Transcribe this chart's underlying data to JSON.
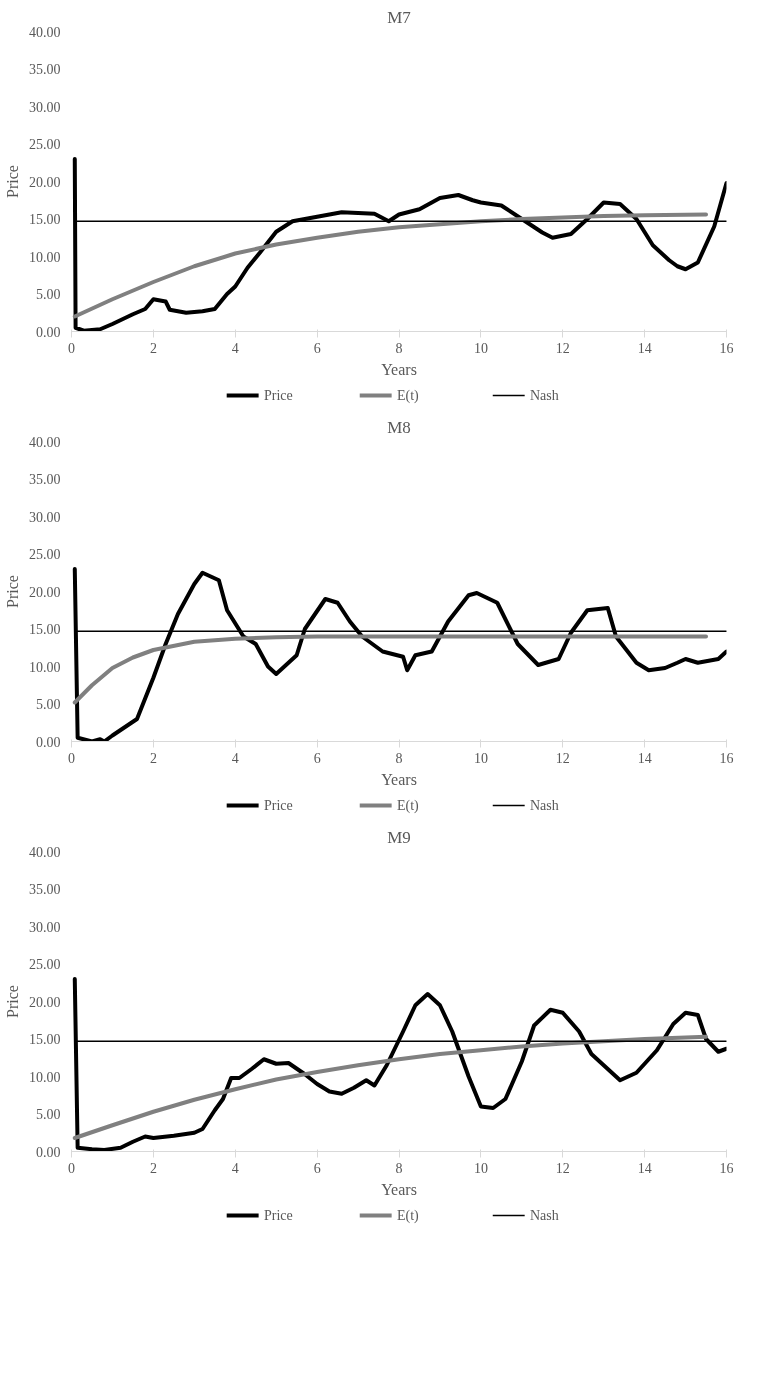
{
  "chart_data": [
    {
      "type": "line",
      "title": "M7",
      "xlabel": "Years",
      "ylabel": "Price",
      "xlim": [
        0,
        16
      ],
      "xticks": [
        0,
        2,
        4,
        6,
        8,
        10,
        12,
        14,
        16
      ],
      "ylim": [
        0,
        40
      ],
      "yticks": [
        {
          "value": 0,
          "label": "0.00"
        },
        {
          "value": 5,
          "label": "5.00"
        },
        {
          "value": 10,
          "label": "10.00"
        },
        {
          "value": 15,
          "label": "15.00"
        },
        {
          "value": 20,
          "label": "20.00"
        },
        {
          "value": 25,
          "label": "25.00"
        },
        {
          "value": 30,
          "label": "30.00"
        },
        {
          "value": 35,
          "label": "35.00"
        },
        {
          "value": 40,
          "label": "40.00"
        }
      ],
      "grid": false,
      "legend": "bottom",
      "series": [
        {
          "name": "Price",
          "color": "#000000",
          "x": [
            0.08,
            0.1,
            0.3,
            0.7,
            1,
            1.5,
            1.8,
            2,
            2.3,
            2.4,
            2.8,
            3.2,
            3.5,
            3.8,
            4,
            4.3,
            4.6,
            5,
            5.4,
            6,
            6.6,
            7,
            7.4,
            7.75,
            8,
            8.5,
            9,
            9.45,
            9.8,
            10,
            10.5,
            11,
            11.5,
            11.75,
            12.2,
            12.6,
            13,
            13.4,
            13.8,
            14.2,
            14.6,
            14.8,
            15,
            15.3,
            15.7,
            16
          ],
          "values": [
            23,
            0.5,
            0.1,
            0.3,
            1,
            2.3,
            3,
            4.3,
            4,
            2.9,
            2.5,
            2.7,
            3,
            5,
            6,
            8.5,
            10.5,
            13.3,
            14.7,
            15.3,
            15.9,
            15.8,
            15.7,
            14.7,
            15.6,
            16.3,
            17.8,
            18.2,
            17.5,
            17.2,
            16.8,
            15,
            13.2,
            12.5,
            13,
            15,
            17.2,
            17,
            15,
            11.5,
            9.5,
            8.7,
            8.3,
            9.2,
            14,
            19.8
          ]
        },
        {
          "name": "E(t)",
          "color": "#808080",
          "x": [
            0.08,
            1,
            2,
            3,
            4,
            5,
            6,
            7,
            8,
            9,
            10,
            11,
            12,
            13,
            14,
            15.5
          ],
          "values": [
            2,
            4.3,
            6.6,
            8.7,
            10.4,
            11.6,
            12.5,
            13.3,
            13.9,
            14.3,
            14.7,
            15,
            15.2,
            15.4,
            15.5,
            15.6
          ]
        },
        {
          "name": "Nash",
          "color": "#000000",
          "x": [
            0.08,
            16
          ],
          "values": [
            14.7,
            14.7
          ]
        }
      ]
    },
    {
      "type": "line",
      "title": "M8",
      "xlabel": "Years",
      "ylabel": "Price",
      "xlim": [
        0,
        16
      ],
      "xticks": [
        0,
        2,
        4,
        6,
        8,
        10,
        12,
        14,
        16
      ],
      "ylim": [
        0,
        40
      ],
      "yticks": [
        {
          "value": 0,
          "label": "0.00"
        },
        {
          "value": 5,
          "label": "5.00"
        },
        {
          "value": 10,
          "label": "10.00"
        },
        {
          "value": 15,
          "label": "15.00"
        },
        {
          "value": 20,
          "label": "20.00"
        },
        {
          "value": 25,
          "label": "25.00"
        },
        {
          "value": 30,
          "label": "30.00"
        },
        {
          "value": 35,
          "label": "35.00"
        },
        {
          "value": 40,
          "label": "40.00"
        }
      ],
      "grid": false,
      "legend": "bottom",
      "series": [
        {
          "name": "Price",
          "color": "#000000",
          "x": [
            0.08,
            0.15,
            0.5,
            0.7,
            0.8,
            1,
            1.6,
            2,
            2.3,
            2.6,
            3.0,
            3.2,
            3.6,
            3.8,
            4.2,
            4.5,
            4.8,
            5.0,
            5.5,
            5.7,
            6.2,
            6.5,
            6.8,
            7.1,
            7.6,
            8.1,
            8.2,
            8.4,
            8.8,
            9.2,
            9.7,
            9.9,
            10.4,
            10.9,
            11.4,
            11.9,
            12.2,
            12.6,
            13.1,
            13.3,
            13.8,
            14.1,
            14.5,
            14.8,
            15.0,
            15.3,
            15.8,
            16
          ],
          "values": [
            23,
            0.5,
            0,
            0.3,
            0,
            0.8,
            3,
            8.5,
            13,
            17,
            21,
            22.5,
            21.5,
            17.5,
            14,
            13,
            10,
            9,
            11.5,
            15,
            19,
            18.5,
            16,
            14,
            12,
            11.3,
            9.5,
            11.5,
            12,
            16,
            19.5,
            19.8,
            18.5,
            13,
            10.2,
            11,
            14.5,
            17.5,
            17.8,
            14,
            10.5,
            9.5,
            9.8,
            10.5,
            11,
            10.5,
            11,
            12
          ]
        },
        {
          "name": "E(t)",
          "color": "#808080",
          "x": [
            0.08,
            0.5,
            1,
            1.5,
            2,
            3,
            4,
            5,
            6,
            15.5
          ],
          "values": [
            5.2,
            7.5,
            9.8,
            11.2,
            12.2,
            13.3,
            13.7,
            13.9,
            14,
            14
          ]
        },
        {
          "name": "Nash",
          "color": "#000000",
          "x": [
            0.08,
            16
          ],
          "values": [
            14.7,
            14.7
          ]
        }
      ]
    },
    {
      "type": "line",
      "title": "M9",
      "xlabel": "Years",
      "ylabel": "Price",
      "xlim": [
        0,
        16
      ],
      "xticks": [
        0,
        2,
        4,
        6,
        8,
        10,
        12,
        14,
        16
      ],
      "ylim": [
        0,
        40
      ],
      "yticks": [
        {
          "value": 0,
          "label": "0.00"
        },
        {
          "value": 5,
          "label": "5.00"
        },
        {
          "value": 10,
          "label": "10.00"
        },
        {
          "value": 15,
          "label": "15.00"
        },
        {
          "value": 20,
          "label": "20.00"
        },
        {
          "value": 25,
          "label": "25.00"
        },
        {
          "value": 30,
          "label": "30.00"
        },
        {
          "value": 35,
          "label": "35.00"
        },
        {
          "value": 40,
          "label": "40.00"
        }
      ],
      "grid": false,
      "legend": "bottom",
      "series": [
        {
          "name": "Price",
          "color": "#000000",
          "x": [
            0.08,
            0.15,
            0.5,
            0.8,
            1.2,
            1.5,
            1.8,
            2,
            2.5,
            3,
            3.2,
            3.5,
            3.7,
            3.9,
            4.1,
            4.4,
            4.7,
            5,
            5.3,
            5.7,
            6,
            6.3,
            6.6,
            6.9,
            7.2,
            7.4,
            7.7,
            8.1,
            8.4,
            8.7,
            9,
            9.3,
            9.7,
            10,
            10.3,
            10.6,
            11,
            11.3,
            11.7,
            12,
            12.4,
            12.7,
            13.1,
            13.4,
            13.8,
            14.3,
            14.7,
            15,
            15.3,
            15.5,
            15.8,
            16
          ],
          "values": [
            23,
            0.5,
            0.3,
            0.2,
            0.5,
            1.3,
            2,
            1.8,
            2.1,
            2.5,
            3,
            5.5,
            7,
            9.8,
            9.8,
            11,
            12.3,
            11.7,
            11.8,
            10.3,
            9,
            8,
            7.7,
            8.5,
            9.5,
            8.8,
            11.5,
            16,
            19.5,
            21,
            19.5,
            16,
            10,
            6,
            5.8,
            7,
            12,
            16.8,
            18.9,
            18.5,
            16,
            13,
            11,
            9.5,
            10.5,
            13.5,
            17,
            18.5,
            18.2,
            15,
            13.3,
            13.7
          ]
        },
        {
          "name": "E(t)",
          "color": "#808080",
          "x": [
            0.08,
            1,
            2,
            3,
            4,
            5,
            6,
            7,
            8,
            9,
            10,
            11,
            12,
            13,
            14,
            15.5
          ],
          "values": [
            1.8,
            3.5,
            5.3,
            6.9,
            8.3,
            9.6,
            10.6,
            11.5,
            12.3,
            13,
            13.5,
            14,
            14.4,
            14.7,
            15,
            15.3
          ]
        },
        {
          "name": "Nash",
          "color": "#000000",
          "x": [
            0.08,
            16
          ],
          "values": [
            14.7,
            14.7
          ]
        }
      ]
    }
  ]
}
